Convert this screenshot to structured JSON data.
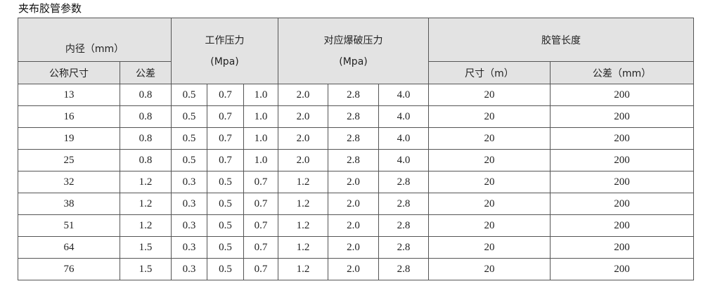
{
  "title": "夹布胶管参数",
  "headers": {
    "inner_diameter": "内径（mm）",
    "working_pressure_line1": "工作压力",
    "working_pressure_line2": "(Mpa)",
    "burst_pressure_line1": "对应爆破压力",
    "burst_pressure_line2": "(Mpa)",
    "hose_length": "胶管长度",
    "nominal_size": "公称尺寸",
    "tolerance": "公差",
    "length_size": "尺寸（m）",
    "length_tolerance": "公差（mm）"
  },
  "rows": [
    [
      "13",
      "0.8",
      "0.5",
      "0.7",
      "1.0",
      "2.0",
      "2.8",
      "4.0",
      "20",
      "200"
    ],
    [
      "16",
      "0.8",
      "0.5",
      "0.7",
      "1.0",
      "2.0",
      "2.8",
      "4.0",
      "20",
      "200"
    ],
    [
      "19",
      "0.8",
      "0.5",
      "0.7",
      "1.0",
      "2.0",
      "2.8",
      "4.0",
      "20",
      "200"
    ],
    [
      "25",
      "0.8",
      "0.5",
      "0.7",
      "1.0",
      "2.0",
      "2.8",
      "4.0",
      "20",
      "200"
    ],
    [
      "32",
      "1.2",
      "0.3",
      "0.5",
      "0.7",
      "1.2",
      "2.0",
      "2.8",
      "20",
      "200"
    ],
    [
      "38",
      "1.2",
      "0.3",
      "0.5",
      "0.7",
      "1.2",
      "2.0",
      "2.8",
      "20",
      "200"
    ],
    [
      "51",
      "1.2",
      "0.3",
      "0.5",
      "0.7",
      "1.2",
      "2.0",
      "2.8",
      "20",
      "200"
    ],
    [
      "64",
      "1.5",
      "0.3",
      "0.5",
      "0.7",
      "1.2",
      "2.0",
      "2.8",
      "20",
      "200"
    ],
    [
      "76",
      "1.5",
      "0.3",
      "0.5",
      "0.7",
      "1.2",
      "2.0",
      "2.8",
      "20",
      "200"
    ]
  ]
}
